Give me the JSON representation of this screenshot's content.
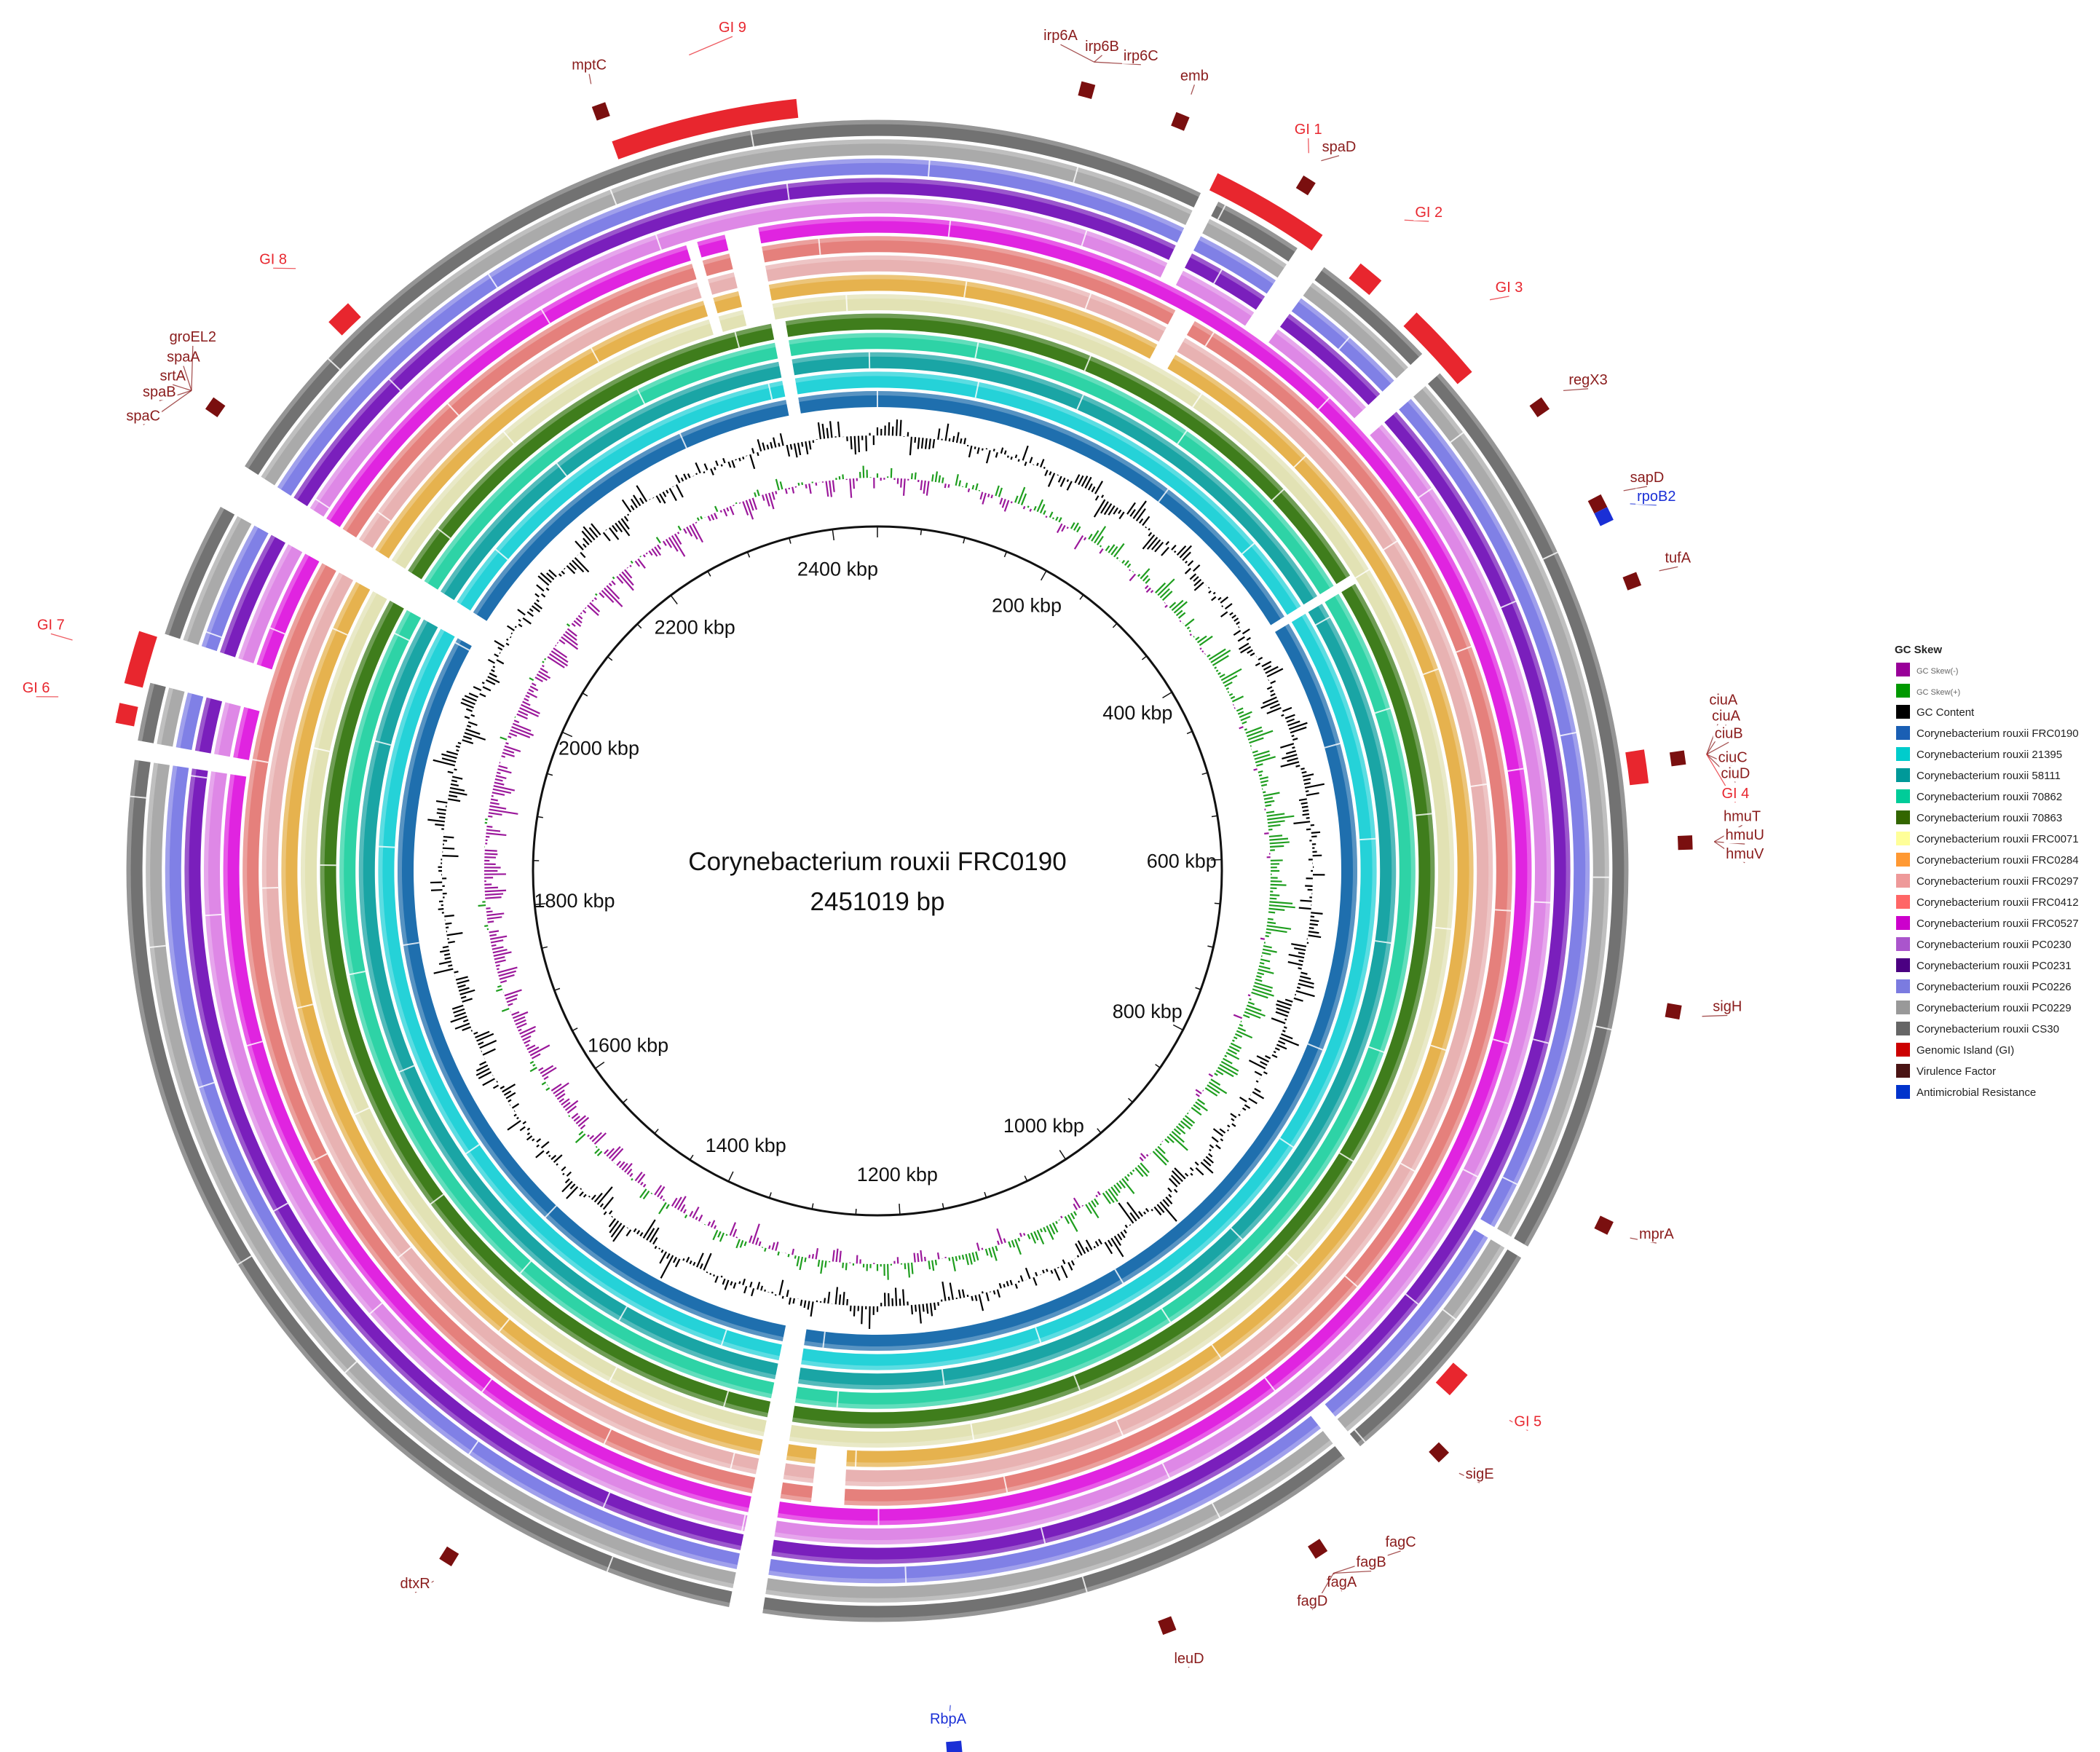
{
  "title": {
    "organism": "Corynebacterium rouxii FRC0190",
    "length": "2451019 bp"
  },
  "ticks": [
    "200 kbp",
    "400 kbp",
    "600 kbp",
    "800 kbp",
    "1000 kbp",
    "1200 kbp",
    "1400 kbp",
    "1600 kbp",
    "1800 kbp",
    "2000 kbp",
    "2200 kbp",
    "2400 kbp"
  ],
  "colors": {
    "gi": "#e8262e",
    "virulence": "#8a1c1c",
    "amr": "#1a2fd6",
    "gc_skew_neg": "#9b189b",
    "gc_skew_pos": "#1f9e1f",
    "gc_content": "#000000"
  },
  "rings": [
    {
      "name": "Corynebacterium rouxii FRC0190",
      "color": "#1f6fae"
    },
    {
      "name": "Corynebacterium rouxii 21395",
      "color": "#25d2d8"
    },
    {
      "name": "Corynebacterium rouxii 58111",
      "color": "#1aa5a5"
    },
    {
      "name": "Corynebacterium rouxii 70862",
      "color": "#2ed3a6"
    },
    {
      "name": "Corynebacterium rouxii 70863",
      "color": "#3f7d1c"
    },
    {
      "name": "Corynebacterium rouxii FRC0071",
      "color": "#e2e2b4"
    },
    {
      "name": "Corynebacterium rouxii FRC0284",
      "color": "#e6b24e"
    },
    {
      "name": "Corynebacterium rouxii FRC0297",
      "color": "#e8b2b2"
    },
    {
      "name": "Corynebacterium rouxii FRC0412",
      "color": "#e5807c"
    },
    {
      "name": "Corynebacterium rouxii FRC0527",
      "color": "#e024e0"
    },
    {
      "name": "Corynebacterium rouxii PC0230",
      "color": "#de88e6"
    },
    {
      "name": "Corynebacterium rouxii PC0231",
      "color": "#7a1fbc"
    },
    {
      "name": "Corynebacterium rouxii PC0226",
      "color": "#8080e6"
    },
    {
      "name": "Corynebacterium rouxii PC0229",
      "color": "#aaaaaa"
    },
    {
      "name": "Corynebacterium rouxii CS30",
      "color": "#727272"
    }
  ],
  "legend": {
    "title": "GC Skew",
    "items": [
      {
        "label": "GC Skew(-)",
        "color": "#990099",
        "small": true
      },
      {
        "label": "GC Skew(+)",
        "color": "#009900",
        "small": true
      },
      {
        "label": "GC Content",
        "color": "#000000"
      },
      {
        "label": "Corynebacterium rouxii FRC0190",
        "color": "#1a5fb4"
      },
      {
        "label": "Corynebacterium rouxii 21395",
        "color": "#00cccc"
      },
      {
        "label": "Corynebacterium rouxii 58111",
        "color": "#009999"
      },
      {
        "label": "Corynebacterium rouxii 70862",
        "color": "#00cc99"
      },
      {
        "label": "Corynebacterium rouxii 70863",
        "color": "#336600"
      },
      {
        "label": "Corynebacterium rouxii FRC0071",
        "color": "#ffff99"
      },
      {
        "label": "Corynebacterium rouxii FRC0284",
        "color": "#ff9933"
      },
      {
        "label": "Corynebacterium rouxii FRC0297",
        "color": "#ee9999"
      },
      {
        "label": "Corynebacterium rouxii FRC0412",
        "color": "#ff6666"
      },
      {
        "label": "Corynebacterium rouxii FRC0527",
        "color": "#cc00cc"
      },
      {
        "label": "Corynebacterium rouxii PC0230",
        "color": "#aa55cc"
      },
      {
        "label": "Corynebacterium rouxii PC0231",
        "color": "#4b0082"
      },
      {
        "label": "Corynebacterium rouxii PC0226",
        "color": "#7b7be0"
      },
      {
        "label": "Corynebacterium rouxii PC0229",
        "color": "#999999"
      },
      {
        "label": "Corynebacterium rouxii CS30",
        "color": "#666666"
      },
      {
        "label": "Genomic Island (GI)",
        "color": "#cc0000"
      },
      {
        "label": "Virulence Factor",
        "color": "#4a1414"
      },
      {
        "label": "Antimicrobial Resistance",
        "color": "#0033cc"
      }
    ]
  },
  "annotations": [
    {
      "label": "mptC",
      "type": "virulence"
    },
    {
      "label": "GI 9",
      "type": "gi"
    },
    {
      "label": "irp6A",
      "type": "virulence"
    },
    {
      "label": "irp6B",
      "type": "virulence"
    },
    {
      "label": "irp6C",
      "type": "virulence"
    },
    {
      "label": "emb",
      "type": "virulence"
    },
    {
      "label": "GI 1",
      "type": "gi"
    },
    {
      "label": "spaD",
      "type": "virulence"
    },
    {
      "label": "GI 2",
      "type": "gi"
    },
    {
      "label": "GI 3",
      "type": "gi"
    },
    {
      "label": "regX3",
      "type": "virulence"
    },
    {
      "label": "sapD",
      "type": "virulence"
    },
    {
      "label": "rpoB2",
      "type": "amr"
    },
    {
      "label": "tufA",
      "type": "virulence"
    },
    {
      "label": "ciuA",
      "type": "virulence"
    },
    {
      "label": "ciuA",
      "type": "virulence"
    },
    {
      "label": "ciuB",
      "type": "virulence"
    },
    {
      "label": "ciuC",
      "type": "virulence"
    },
    {
      "label": "ciuD",
      "type": "virulence"
    },
    {
      "label": "GI 4",
      "type": "gi"
    },
    {
      "label": "hmuT",
      "type": "virulence"
    },
    {
      "label": "hmuU",
      "type": "virulence"
    },
    {
      "label": "hmuV",
      "type": "virulence"
    },
    {
      "label": "sigH",
      "type": "virulence"
    },
    {
      "label": "mprA",
      "type": "virulence"
    },
    {
      "label": "GI 5",
      "type": "gi"
    },
    {
      "label": "sigE",
      "type": "virulence"
    },
    {
      "label": "fagC",
      "type": "virulence"
    },
    {
      "label": "fagB",
      "type": "virulence"
    },
    {
      "label": "fagA",
      "type": "virulence"
    },
    {
      "label": "fagD",
      "type": "virulence"
    },
    {
      "label": "leuD",
      "type": "virulence"
    },
    {
      "label": "RbpA",
      "type": "amr"
    },
    {
      "label": "dtxR",
      "type": "virulence"
    },
    {
      "label": "spaC",
      "type": "virulence"
    },
    {
      "label": "spaB",
      "type": "virulence"
    },
    {
      "label": "srtA",
      "type": "virulence"
    },
    {
      "label": "spaA",
      "type": "virulence"
    },
    {
      "label": "groEL2",
      "type": "virulence"
    },
    {
      "label": "GI 8",
      "type": "gi"
    },
    {
      "label": "GI 7",
      "type": "gi"
    },
    {
      "label": "GI 6",
      "type": "gi"
    }
  ]
}
